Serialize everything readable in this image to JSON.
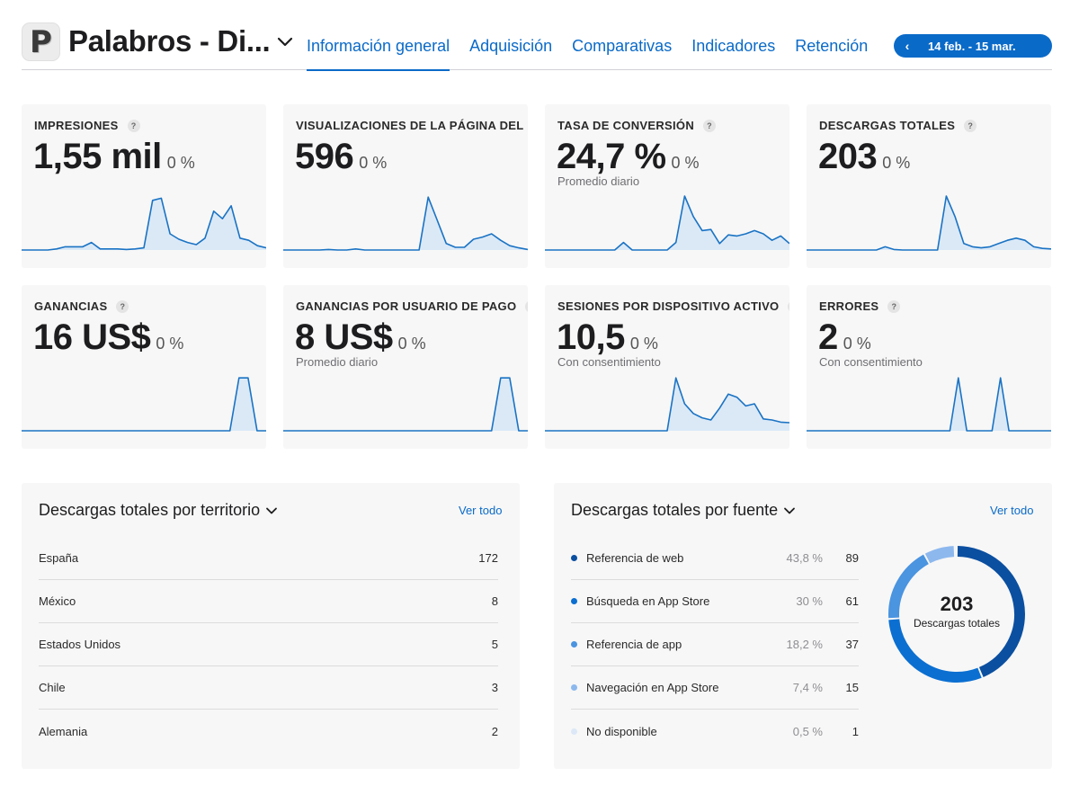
{
  "header": {
    "app_icon_letter": "P",
    "app_title": "Palabros - Di...",
    "tabs": [
      "Información general",
      "Adquisición",
      "Comparativas",
      "Indicadores",
      "Retención"
    ],
    "date_range": "14 feb. - 15 mar."
  },
  "metrics": [
    {
      "label": "IMPRESIONES",
      "value": "1,55 mil",
      "change": "0 %",
      "sub": "",
      "spark": [
        0,
        0,
        0,
        0,
        0.02,
        0.06,
        0.06,
        0.06,
        0.14,
        0.02,
        0.02,
        0.02,
        0.01,
        0.02,
        0.04,
        0.92,
        0.96,
        0.3,
        0.2,
        0.14,
        0.1,
        0.22,
        0.72,
        0.58,
        0.82,
        0.22,
        0.18,
        0.08,
        0.04
      ]
    },
    {
      "label": "VISUALIZACIONES DE LA PÁGINA DEL PRODUCTO",
      "value": "596",
      "change": "0 %",
      "sub": "",
      "spark": [
        0,
        0,
        0,
        0,
        0,
        0.01,
        0,
        0,
        0.02,
        0,
        0,
        0,
        0,
        0,
        0,
        0,
        0.98,
        0.55,
        0.12,
        0.05,
        0.05,
        0.2,
        0.24,
        0.3,
        0.18,
        0.08,
        0.04,
        0.01
      ]
    },
    {
      "label": "TASA DE CONVERSIÓN",
      "value": "24,7 %",
      "change": "0 %",
      "sub": "Promedio diario",
      "spark": [
        0,
        0,
        0,
        0,
        0,
        0,
        0,
        0,
        0,
        0.14,
        0,
        0,
        0,
        0,
        0,
        0.14,
        1.0,
        0.62,
        0.36,
        0.38,
        0.12,
        0.28,
        0.26,
        0.3,
        0.36,
        0.3,
        0.18,
        0.26,
        0.12
      ]
    },
    {
      "label": "DESCARGAS TOTALES",
      "value": "203",
      "change": "0 %",
      "sub": "",
      "spark": [
        0,
        0,
        0,
        0,
        0,
        0,
        0,
        0,
        0,
        0.06,
        0.01,
        0,
        0,
        0,
        0,
        0,
        1.0,
        0.62,
        0.12,
        0.06,
        0.04,
        0.06,
        0.12,
        0.18,
        0.22,
        0.18,
        0.06,
        0.03,
        0.02
      ]
    }
  ],
  "metrics2": [
    {
      "label": "GANANCIAS",
      "value": "16 US$",
      "change": "0 %",
      "sub": "",
      "spark": [
        0,
        0,
        0,
        0,
        0,
        0,
        0,
        0,
        0,
        0,
        0,
        0,
        0,
        0,
        0,
        0,
        0,
        0,
        0,
        0,
        0,
        0,
        0,
        0,
        0.98,
        0.98,
        0,
        0
      ]
    },
    {
      "label": "GANANCIAS POR USUARIO DE PAGO",
      "value": "8 US$",
      "change": "0 %",
      "sub": "Promedio diario",
      "spark": [
        0,
        0,
        0,
        0,
        0,
        0,
        0,
        0,
        0,
        0,
        0,
        0,
        0,
        0,
        0,
        0,
        0,
        0,
        0,
        0,
        0,
        0,
        0,
        0,
        0.98,
        0.98,
        0,
        0
      ]
    },
    {
      "label": "SESIONES POR DISPOSITIVO ACTIVO",
      "value": "10,5",
      "change": "0 %",
      "sub": "Con consentimiento",
      "spark": [
        0,
        0,
        0,
        0,
        0,
        0,
        0,
        0,
        0,
        0,
        0,
        0,
        0,
        0,
        0,
        0.98,
        0.5,
        0.32,
        0.24,
        0.2,
        0.42,
        0.68,
        0.62,
        0.46,
        0.5,
        0.22,
        0.2,
        0.16,
        0.15
      ]
    },
    {
      "label": "ERRORES",
      "value": "2",
      "change": "0 %",
      "sub": "Con consentimiento",
      "spark": [
        0,
        0,
        0,
        0,
        0,
        0,
        0,
        0,
        0,
        0,
        0,
        0,
        0,
        0,
        0,
        0,
        0,
        0,
        0.98,
        0,
        0,
        0,
        0,
        0.98,
        0,
        0,
        0,
        0,
        0,
        0
      ]
    }
  ],
  "territory": {
    "title": "Descargas totales por territorio",
    "see_all": "Ver todo",
    "rows": [
      {
        "name": "España",
        "value": "172"
      },
      {
        "name": "México",
        "value": "8"
      },
      {
        "name": "Estados Unidos",
        "value": "5"
      },
      {
        "name": "Chile",
        "value": "3"
      },
      {
        "name": "Alemania",
        "value": "2"
      }
    ]
  },
  "source": {
    "title": "Descargas totales por fuente",
    "see_all": "Ver todo",
    "rows": [
      {
        "name": "Referencia de web",
        "share": "43,8 %",
        "value": "89",
        "color": "#0b4fa0"
      },
      {
        "name": "Búsqueda en App Store",
        "share": "30 %",
        "value": "61",
        "color": "#0b6fd1"
      },
      {
        "name": "Referencia de app",
        "share": "18,2 %",
        "value": "37",
        "color": "#4a94e0"
      },
      {
        "name": "Navegación en App Store",
        "share": "7,4 %",
        "value": "15",
        "color": "#8db8ee"
      },
      {
        "name": "No disponible",
        "share": "0,5 %",
        "value": "1",
        "color": "#dce8f7"
      }
    ],
    "total": "203",
    "total_label": "Descargas totales"
  },
  "chart_data": {
    "type": "pie",
    "title": "Descargas totales por fuente",
    "categories": [
      "Referencia de web",
      "Búsqueda en App Store",
      "Referencia de app",
      "Navegación en App Store",
      "No disponible"
    ],
    "values": [
      89,
      61,
      37,
      15,
      1
    ]
  },
  "colors": {
    "accent": "#0a6ac8",
    "spark_line": "#1a73c4",
    "spark_fill": "#cfe3f7"
  }
}
